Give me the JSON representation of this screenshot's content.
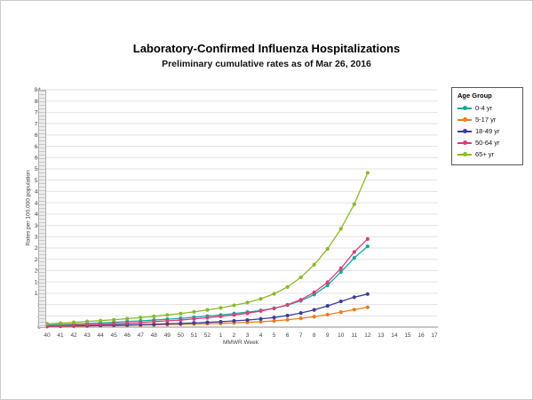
{
  "header": {
    "title": "Laboratory-Confirmed Influenza Hospitalizations",
    "subtitle": "Preliminary cumulative rates as of Mar 26, 2016"
  },
  "legend": {
    "title": "Age Group"
  },
  "chart_data": {
    "type": "line",
    "title": "Laboratory-Confirmed Influenza Hospitalizations",
    "subtitle": "Preliminary cumulative rates as of Mar 26, 2016",
    "xlabel": "MMWR Week",
    "ylabel": "Rates per 100,000 population",
    "ylim": [
      0,
      84
    ],
    "y_tick_step": 4,
    "grid": true,
    "legend_position": "right",
    "categories": [
      "40",
      "41",
      "42",
      "43",
      "44",
      "45",
      "46",
      "47",
      "48",
      "49",
      "50",
      "51",
      "52",
      "1",
      "2",
      "3",
      "4",
      "5",
      "6",
      "7",
      "8",
      "9",
      "10",
      "11",
      "12",
      "13",
      "14",
      "15",
      "16",
      "17"
    ],
    "series": [
      {
        "name": "0-4 yr",
        "color": "#12A89D",
        "values": [
          0.7,
          0.9,
          1.1,
          1.3,
          1.5,
          1.7,
          2.0,
          2.2,
          2.5,
          2.8,
          3.1,
          3.5,
          3.9,
          4.3,
          4.8,
          5.3,
          5.9,
          6.7,
          7.8,
          9.3,
          11.5,
          14.8,
          19.5,
          24.5,
          28.6,
          null,
          null,
          null,
          null,
          null
        ]
      },
      {
        "name": "5-17 yr",
        "color": "#E87D1E",
        "values": [
          0.2,
          0.3,
          0.3,
          0.4,
          0.5,
          0.5,
          0.6,
          0.7,
          0.8,
          0.9,
          1.0,
          1.1,
          1.2,
          1.3,
          1.5,
          1.7,
          1.9,
          2.2,
          2.6,
          3.1,
          3.7,
          4.4,
          5.3,
          6.2,
          7.0,
          null,
          null,
          null,
          null,
          null
        ]
      },
      {
        "name": "18-49 yr",
        "color": "#3D3D99",
        "values": [
          0.3,
          0.4,
          0.5,
          0.5,
          0.6,
          0.7,
          0.8,
          0.9,
          1.0,
          1.2,
          1.3,
          1.5,
          1.7,
          1.9,
          2.2,
          2.5,
          2.9,
          3.4,
          4.1,
          5.0,
          6.1,
          7.5,
          9.1,
          10.6,
          11.7,
          null,
          null,
          null,
          null,
          null
        ]
      },
      {
        "name": "50-64 yr",
        "color": "#DD3C78",
        "values": [
          0.4,
          0.5,
          0.7,
          0.8,
          1.0,
          1.2,
          1.4,
          1.6,
          1.9,
          2.2,
          2.5,
          2.9,
          3.3,
          3.8,
          4.3,
          4.9,
          5.7,
          6.6,
          7.9,
          9.7,
          12.3,
          15.9,
          20.8,
          26.6,
          31.2,
          null,
          null,
          null,
          null,
          null
        ]
      },
      {
        "name": "65+ yr",
        "color": "#8CB82B",
        "values": [
          1.2,
          1.4,
          1.7,
          2.0,
          2.3,
          2.6,
          3.0,
          3.4,
          3.8,
          4.3,
          4.8,
          5.4,
          6.1,
          6.8,
          7.7,
          8.7,
          10.0,
          11.8,
          14.2,
          17.6,
          22.1,
          27.7,
          34.8,
          43.5,
          54.6,
          null,
          null,
          null,
          null,
          null
        ]
      }
    ]
  }
}
